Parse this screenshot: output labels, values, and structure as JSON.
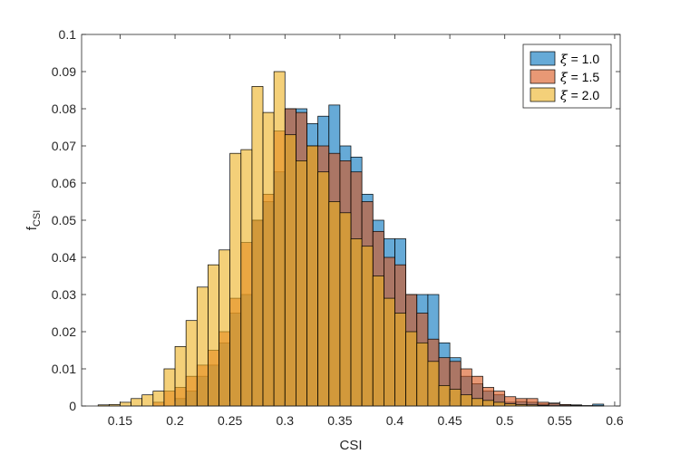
{
  "chart_data": {
    "type": "bar",
    "subtype": "overlaid-histogram",
    "xlabel": "CSI",
    "ylabel_main": "f",
    "ylabel_sub": "CSI",
    "xlim": [
      0.115,
      0.605
    ],
    "ylim": [
      0,
      0.1
    ],
    "xticks": [
      0.15,
      0.2,
      0.25,
      0.3,
      0.35,
      0.4,
      0.45,
      0.5,
      0.55,
      0.6
    ],
    "yticks": [
      0,
      0.01,
      0.02,
      0.03,
      0.04,
      0.05,
      0.06,
      0.07,
      0.08,
      0.09,
      0.1
    ],
    "xtick_labels": [
      "0.15",
      "0.2",
      "0.25",
      "0.3",
      "0.35",
      "0.4",
      "0.45",
      "0.5",
      "0.55",
      "0.6"
    ],
    "ytick_labels": [
      "0",
      "0.01",
      "0.02",
      "0.03",
      "0.04",
      "0.05",
      "0.06",
      "0.07",
      "0.08",
      "0.09",
      "0.1"
    ],
    "bin_width": 0.01,
    "bin_centers": [
      0.135,
      0.145,
      0.155,
      0.165,
      0.175,
      0.185,
      0.195,
      0.205,
      0.215,
      0.225,
      0.235,
      0.245,
      0.255,
      0.265,
      0.275,
      0.285,
      0.295,
      0.305,
      0.315,
      0.325,
      0.335,
      0.345,
      0.355,
      0.365,
      0.375,
      0.385,
      0.395,
      0.405,
      0.415,
      0.425,
      0.435,
      0.445,
      0.455,
      0.465,
      0.475,
      0.485,
      0.495,
      0.505,
      0.515,
      0.525,
      0.535,
      0.545,
      0.555,
      0.565,
      0.575,
      0.585
    ],
    "series": [
      {
        "name": "ξ = 1.0",
        "color": "#0072BD",
        "values": [
          0,
          0,
          0,
          0,
          0,
          0,
          0,
          0.002,
          0.004,
          0.008,
          0.011,
          0.017,
          0.025,
          0.03,
          0.05,
          0.055,
          0.063,
          0.08,
          0.08,
          0.076,
          0.078,
          0.081,
          0.07,
          0.067,
          0.057,
          0.05,
          0.045,
          0.045,
          0.03,
          0.03,
          0.03,
          0.017,
          0.013,
          0.008,
          0.006,
          0.004,
          0.003,
          0.001,
          0.0012,
          0.001,
          0.0005,
          0.0008,
          0.0004,
          0.0003,
          0.0001,
          0.0005
        ]
      },
      {
        "name": "ξ = 1.5",
        "color": "#D95319",
        "values": [
          0,
          0,
          0,
          0,
          0,
          0.001,
          0.004,
          0.005,
          0.008,
          0.011,
          0.015,
          0.02,
          0.029,
          0.044,
          0.05,
          0.057,
          0.074,
          0.08,
          0.079,
          0.07,
          0.07,
          0.068,
          0.066,
          0.063,
          0.055,
          0.047,
          0.04,
          0.038,
          0.03,
          0.025,
          0.018,
          0.013,
          0.012,
          0.01,
          0.008,
          0.005,
          0.004,
          0.0025,
          0.002,
          0.002,
          0.001,
          0.0007,
          0.0004,
          0.0002,
          0.0001,
          0.0001
        ]
      },
      {
        "name": "ξ = 2.0",
        "color": "#EDB120",
        "values": [
          0.0003,
          0.0004,
          0.001,
          0.002,
          0.003,
          0.004,
          0.01,
          0.016,
          0.023,
          0.032,
          0.038,
          0.042,
          0.068,
          0.069,
          0.086,
          0.079,
          0.09,
          0.073,
          0.066,
          0.07,
          0.063,
          0.055,
          0.052,
          0.045,
          0.043,
          0.035,
          0.029,
          0.025,
          0.02,
          0.017,
          0.012,
          0.0055,
          0.0045,
          0.003,
          0.002,
          0.0015,
          0.001,
          0.0006,
          0.0004,
          0.0003,
          0.0002,
          0.0001,
          0.0001,
          0,
          0,
          0
        ]
      }
    ],
    "legend_position": "top-right",
    "legend": [
      "ξ = 1.0",
      "ξ = 1.5",
      "ξ = 2.0"
    ],
    "legend_symbol": "ξ",
    "legend_value_texts": [
      " = 1.0",
      " = 1.5",
      " = 2.0"
    ],
    "grid": false,
    "bar_opacity": 0.6
  }
}
